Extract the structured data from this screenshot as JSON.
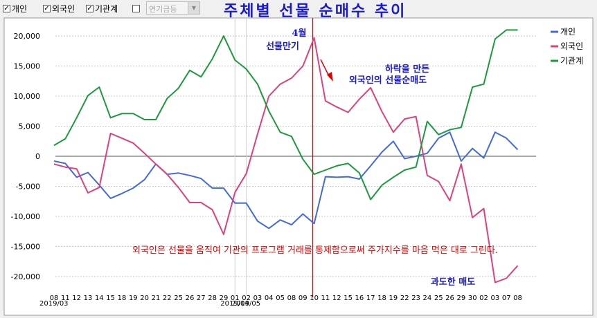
{
  "toolbar": {
    "checkbox_individual": "개인",
    "checkbox_foreign": "외국인",
    "checkbox_institution": "기관계",
    "combo_value": "연기금등"
  },
  "title": "주체별 선물 순매수 추이",
  "chart_data": {
    "type": "line",
    "x": [
      "08",
      "11",
      "12",
      "13",
      "14",
      "15",
      "18",
      "19",
      "20",
      "21",
      "22",
      "25",
      "26",
      "27",
      "28",
      "29",
      "01",
      "02",
      "03",
      "04",
      "05",
      "08",
      "09",
      "10",
      "11",
      "12",
      "15",
      "16",
      "17",
      "18",
      "19",
      "22",
      "23",
      "24",
      "25",
      "26",
      "29",
      "30",
      "02",
      "03",
      "07",
      "08"
    ],
    "month_labels": [
      {
        "label": "2019/03",
        "at": "08"
      },
      {
        "label": "2019/04",
        "at": "01"
      },
      {
        "label": "2019/05",
        "at": "02"
      }
    ],
    "ylim": [
      -23000,
      23000
    ],
    "yticks": [
      20000,
      15000,
      10000,
      5000,
      0,
      -5000,
      -10000,
      -15000,
      -20000
    ],
    "ytick_labels": [
      "20,000",
      "15,000",
      "10,000",
      "5,000",
      "0",
      "-5,000",
      "-10,000",
      "-15,000",
      "-20,000"
    ],
    "legend_position": "top-right",
    "series": [
      {
        "name": "개인",
        "color": "#4169e1",
        "values": [
          -800,
          -1200,
          -3500,
          -2700,
          -4800,
          -7000,
          -6200,
          -5300,
          -3900,
          -1300,
          -3000,
          -2800,
          -3200,
          -3700,
          -5300,
          -5300,
          -7800,
          -7800,
          -10800,
          -12000,
          -10600,
          -11400,
          -9600,
          -11200,
          -3400,
          -3500,
          -3400,
          -3800,
          -1600,
          700,
          2500,
          -400,
          0,
          500,
          3000,
          4000,
          -800,
          1300,
          -300,
          4000,
          3000,
          1100
        ]
      },
      {
        "name": "외국인",
        "color": "#e0407a",
        "values": [
          -1300,
          -1800,
          -2100,
          -6100,
          -5200,
          3800,
          3000,
          2200,
          500,
          -1300,
          -3000,
          -5200,
          -7700,
          -7700,
          -8900,
          -13000,
          -6000,
          -2900,
          3700,
          10000,
          12000,
          13000,
          15000,
          19700,
          9200,
          8200,
          7300,
          9500,
          11400,
          7400,
          4000,
          6200,
          6600,
          -3200,
          -4200,
          -7400,
          -1300,
          -10200,
          -8700,
          -21000,
          -20300,
          -18200
        ]
      },
      {
        "name": "기관계",
        "color": "#1a9a3a",
        "values": [
          1800,
          2900,
          6400,
          10100,
          11500,
          6400,
          7100,
          7100,
          6100,
          6100,
          9600,
          11300,
          14300,
          13200,
          16200,
          20000,
          16000,
          14500,
          12000,
          7500,
          4000,
          3300,
          -500,
          -3000,
          -2300,
          -1600,
          -1200,
          -2800,
          -7200,
          -4800,
          -3500,
          -2300,
          -1800,
          5800,
          3600,
          4400,
          4800,
          11500,
          12000,
          19500,
          21000,
          21000
        ]
      }
    ],
    "annotations": {
      "event_label_line1": "4월",
      "event_label_line2": "선물만기",
      "event_at": "10",
      "note_top_line1": "하락을 만든",
      "note_top_line2": "외국인의 선물순매도",
      "note_middle": "외국인은 선물을 움직여 기관의 프로그램 거래를 통제함으로써 주가지수를 마음 먹은 대로 그린다.",
      "note_bottom": "과도한 매도"
    }
  }
}
